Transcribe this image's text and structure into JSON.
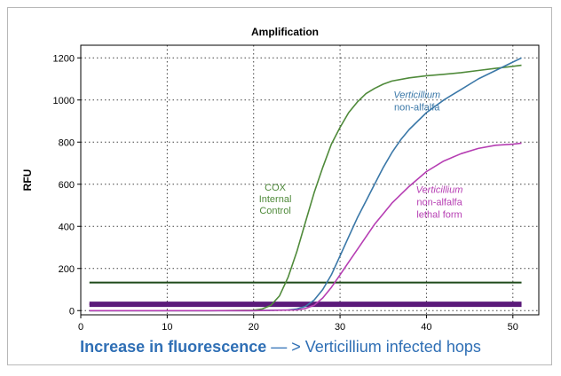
{
  "chart_data": {
    "type": "line",
    "title": "Amplification",
    "xlabel": "",
    "ylabel": "RFU",
    "xlim": [
      0,
      53
    ],
    "ylim": [
      -20,
      1260
    ],
    "xticks": [
      0,
      10,
      20,
      30,
      40,
      50
    ],
    "yticks": [
      0,
      200,
      400,
      600,
      800,
      1000,
      1200
    ],
    "grid": true,
    "series": [
      {
        "name_lines": [
          "COX",
          "Internal",
          "Control"
        ],
        "color": "#4f8a3a",
        "x": [
          1,
          5,
          10,
          15,
          20,
          21,
          22,
          23,
          24,
          25,
          26,
          27,
          28,
          29,
          30,
          31,
          32,
          33,
          34,
          35,
          36,
          38,
          40,
          42,
          44,
          46,
          48,
          50,
          51
        ],
        "y": [
          0,
          0,
          0,
          0,
          2,
          8,
          25,
          70,
          160,
          280,
          420,
          560,
          680,
          790,
          870,
          940,
          990,
          1030,
          1055,
          1075,
          1090,
          1105,
          1115,
          1122,
          1130,
          1140,
          1150,
          1160,
          1165
        ]
      },
      {
        "name_lines": [
          "Verticillium",
          "non-alfalfa"
        ],
        "italic_first": true,
        "color": "#3b78a8",
        "x": [
          1,
          5,
          10,
          15,
          20,
          24,
          25,
          26,
          27,
          28,
          29,
          30,
          31,
          32,
          33,
          34,
          35,
          36,
          37,
          38,
          40,
          42,
          44,
          46,
          48,
          50,
          51
        ],
        "y": [
          0,
          0,
          0,
          0,
          0,
          3,
          8,
          20,
          50,
          100,
          170,
          260,
          350,
          440,
          520,
          600,
          680,
          750,
          810,
          860,
          940,
          1000,
          1050,
          1100,
          1140,
          1180,
          1200
        ]
      },
      {
        "name_lines": [
          "Verticillium",
          "non-alfalfa",
          "lethal form"
        ],
        "italic_first": true,
        "color": "#b63eb3",
        "x": [
          1,
          5,
          10,
          15,
          20,
          25,
          26,
          27,
          28,
          29,
          30,
          31,
          32,
          33,
          34,
          35,
          36,
          38,
          40,
          42,
          44,
          46,
          48,
          50,
          51
        ],
        "y": [
          0,
          0,
          0,
          0,
          0,
          3,
          10,
          25,
          60,
          110,
          170,
          230,
          290,
          350,
          410,
          460,
          510,
          590,
          660,
          710,
          745,
          770,
          785,
          790,
          795
        ]
      }
    ],
    "threshold_lines": [
      {
        "y": 133,
        "color": "#1f4a1a"
      },
      {
        "y": 30,
        "color": "#5b1a7a"
      }
    ]
  },
  "caption": {
    "bold": "Increase in fluorescence",
    "arrow": " — > ",
    "rest": "Verticillium infected hops"
  }
}
